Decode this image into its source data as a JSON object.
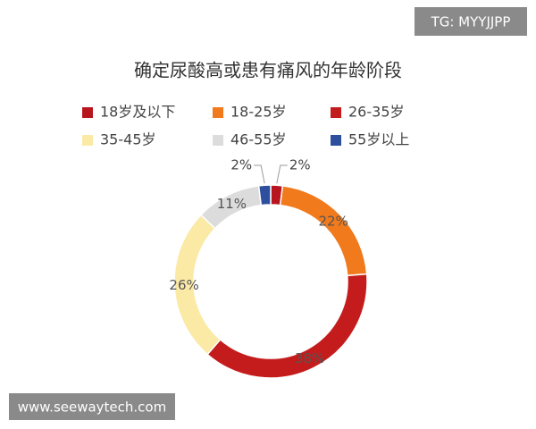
{
  "chart_data": {
    "type": "donut",
    "title": "确定尿酸高或患有痛风的年龄阶段",
    "categories": [
      "18岁及以下",
      "18-25岁",
      "26-35岁",
      "35-45岁",
      "46-55岁",
      "55岁以上"
    ],
    "values": [
      2,
      22,
      38,
      26,
      11,
      2
    ],
    "value_labels": [
      "2%",
      "22%",
      "38%",
      "26%",
      "11%",
      "2%"
    ],
    "colors": [
      "#b8161e",
      "#f07a1c",
      "#c41c1c",
      "#fbeaa5",
      "#dcdcdc",
      "#2e4e9e"
    ]
  },
  "overlay": {
    "top_right": "TG: MYYJJPP",
    "bottom_left": "www.seewaytech.com"
  }
}
